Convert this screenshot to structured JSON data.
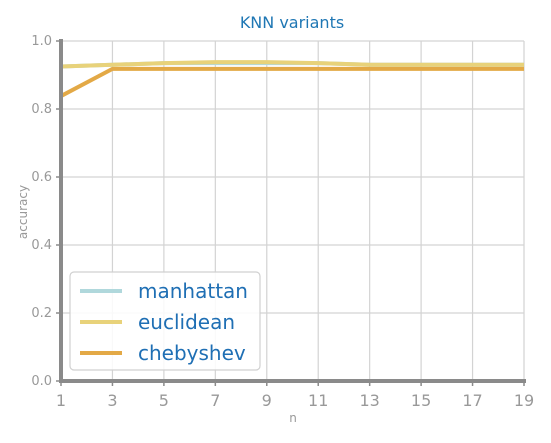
{
  "chart_data": {
    "type": "line",
    "title": "KNN variants",
    "xlabel": "n",
    "ylabel": "accuracy",
    "x": [
      1,
      3,
      5,
      7,
      9,
      11,
      13,
      15,
      17,
      19
    ],
    "xlim": [
      1,
      19
    ],
    "ylim": [
      0.0,
      1.0
    ],
    "x_ticks": [
      "1",
      "3",
      "5",
      "7",
      "9",
      "11",
      "13",
      "15",
      "17",
      "19"
    ],
    "y_ticks": [
      "0.0",
      "0.2",
      "0.4",
      "0.6",
      "0.8",
      "1.0"
    ],
    "grid": true,
    "legend_position": "bottom-left",
    "series": [
      {
        "name": "manhattan",
        "color": "#b0d8dc",
        "values": [
          0.925,
          0.93,
          0.935,
          0.935,
          0.935,
          0.935,
          0.93,
          0.93,
          0.93,
          0.93
        ]
      },
      {
        "name": "euclidean",
        "color": "#e8d27a",
        "values": [
          0.925,
          0.93,
          0.935,
          0.938,
          0.938,
          0.935,
          0.93,
          0.93,
          0.93,
          0.93
        ]
      },
      {
        "name": "chebyshev",
        "color": "#e3a946",
        "values": [
          0.838,
          0.918,
          0.918,
          0.918,
          0.918,
          0.918,
          0.918,
          0.918,
          0.918,
          0.918
        ]
      }
    ]
  },
  "colors": {
    "title": "#1f77b4",
    "axis_label": "#999999",
    "tick_label": "#999999",
    "axis_line": "#8a8a8a",
    "grid": "#d3d3d3",
    "legend_text": "#1f6fb4"
  }
}
